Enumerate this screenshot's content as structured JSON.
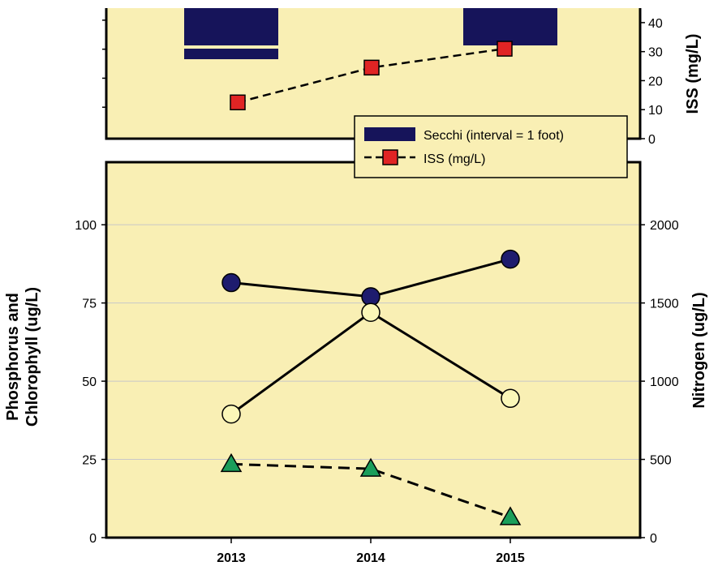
{
  "colors": {
    "plot_bg": "#F9EFB4",
    "secchi": "#16145A",
    "iss_marker": "#E02424",
    "circle_dark": "#1E1C6E",
    "circle_light": "#FBF7B8",
    "triangle": "#1B9E5A",
    "gridline": "#C8C8C8"
  },
  "chart_data": [
    {
      "panel": "top",
      "type": "bar+line",
      "x": [
        "2013",
        "2014",
        "2015"
      ],
      "secchi_name": "Secchi (interval = 1 foot)",
      "secchi": [
        {
          "year": "2013",
          "intervals_feet": 2
        },
        {
          "year": "2014",
          "intervals_feet": 0
        },
        {
          "year": "2015",
          "intervals_feet": 1
        }
      ],
      "iss": {
        "name": "ISS (mg/L)",
        "x": [
          "2013",
          "2014",
          "2015"
        ],
        "values": [
          12.5,
          24.5,
          31
        ]
      },
      "y_right": {
        "label": "ISS (mg/L)",
        "ticks": [
          "0",
          "10",
          "20",
          "30",
          "40"
        ],
        "range": [
          0,
          45
        ]
      },
      "legend": "bottom-right"
    },
    {
      "panel": "bottom",
      "type": "line",
      "categories": [
        "2013",
        "2014",
        "2015"
      ],
      "y_left": {
        "label_line1": "Phosphorus and",
        "label_line2": "Chlorophyll (ug/L)",
        "ticks": [
          "0",
          "25",
          "50",
          "75",
          "100"
        ],
        "range": [
          0,
          120
        ]
      },
      "y_right": {
        "label": "Nitrogen (ug/L)",
        "ticks": [
          "0",
          "500",
          "1000",
          "1500",
          "2000"
        ],
        "range": [
          0,
          2400
        ]
      },
      "grid": true,
      "series": [
        {
          "axis": "right",
          "marker": "circle-dark",
          "line": "solid",
          "values": [
            1630,
            1540,
            1780
          ]
        },
        {
          "axis": "left",
          "marker": "circle-light",
          "line": "solid",
          "values": [
            39.5,
            72,
            44.5
          ]
        },
        {
          "axis": "left",
          "marker": "triangle",
          "line": "dashed",
          "values": [
            23.5,
            22,
            6.5
          ]
        }
      ]
    }
  ]
}
